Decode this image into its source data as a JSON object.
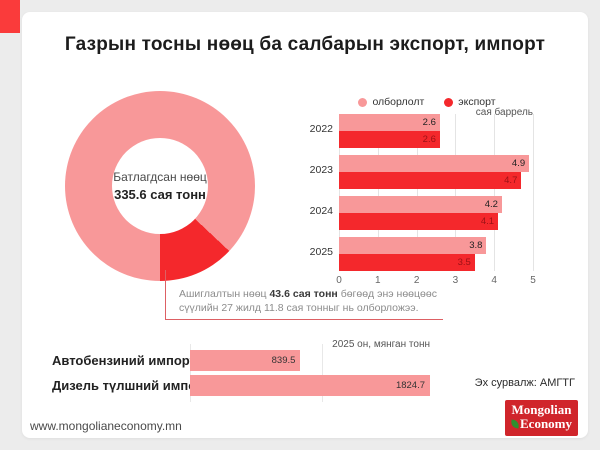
{
  "title": "Газрын тосны нөөц ба салбарын экспорт, импорт",
  "source": "Эх сурвалж: АМГТГ",
  "footer_url": "www.mongolianeconomy.mn",
  "logo": {
    "line1": "Mongolian",
    "line2": "Economy"
  },
  "annotation": {
    "pre": "Ашиглалтын нөөц ",
    "bold": "43.6 сая тонн",
    "post": " бөгөөд энэ нөөцөөс сүүлийн 27 жилд 11.8 сая тонныг нь олборложээ."
  },
  "colors": {
    "pink": "#F89899",
    "red": "#F4282C",
    "corner_accent": "#FA3B3B",
    "logo_red": "#D0252B",
    "page_bg": "#ECECEC",
    "card_bg": "#FFFFFF"
  },
  "chart_data": [
    {
      "type": "pie",
      "subtype": "donut",
      "center_label": "Батлагдсан нөөц",
      "center_value": "335.6 сая тонн",
      "total": 335.6,
      "slices": [
        {
          "label": "Батлагдсан нөөц",
          "value": 292.0,
          "color": "#F89899"
        },
        {
          "label": "Ашиглалтын нөөц",
          "value": 43.6,
          "color": "#F4282C"
        }
      ]
    },
    {
      "type": "bar",
      "orientation": "horizontal",
      "unit": "сая баррель",
      "categories": [
        "2022",
        "2023",
        "2024",
        "2025"
      ],
      "series": [
        {
          "name": "олборлолт",
          "color": "#F89899",
          "values": [
            2.6,
            4.9,
            4.2,
            3.8
          ]
        },
        {
          "name": "экспорт",
          "color": "#F4282C",
          "values": [
            2.6,
            4.7,
            4.1,
            3.5
          ]
        }
      ],
      "xlim": [
        0,
        5
      ],
      "xticks": [
        0,
        1,
        2,
        3,
        4,
        5
      ],
      "legend_position": "top",
      "grid": true
    },
    {
      "type": "bar",
      "orientation": "horizontal",
      "title": "2025 он, мянган тонн",
      "categories": [
        "Автобензиний импорт",
        "Дизель түлшний импорт"
      ],
      "values": [
        839.5,
        1824.7
      ],
      "color": "#F89899",
      "grid": true
    }
  ]
}
